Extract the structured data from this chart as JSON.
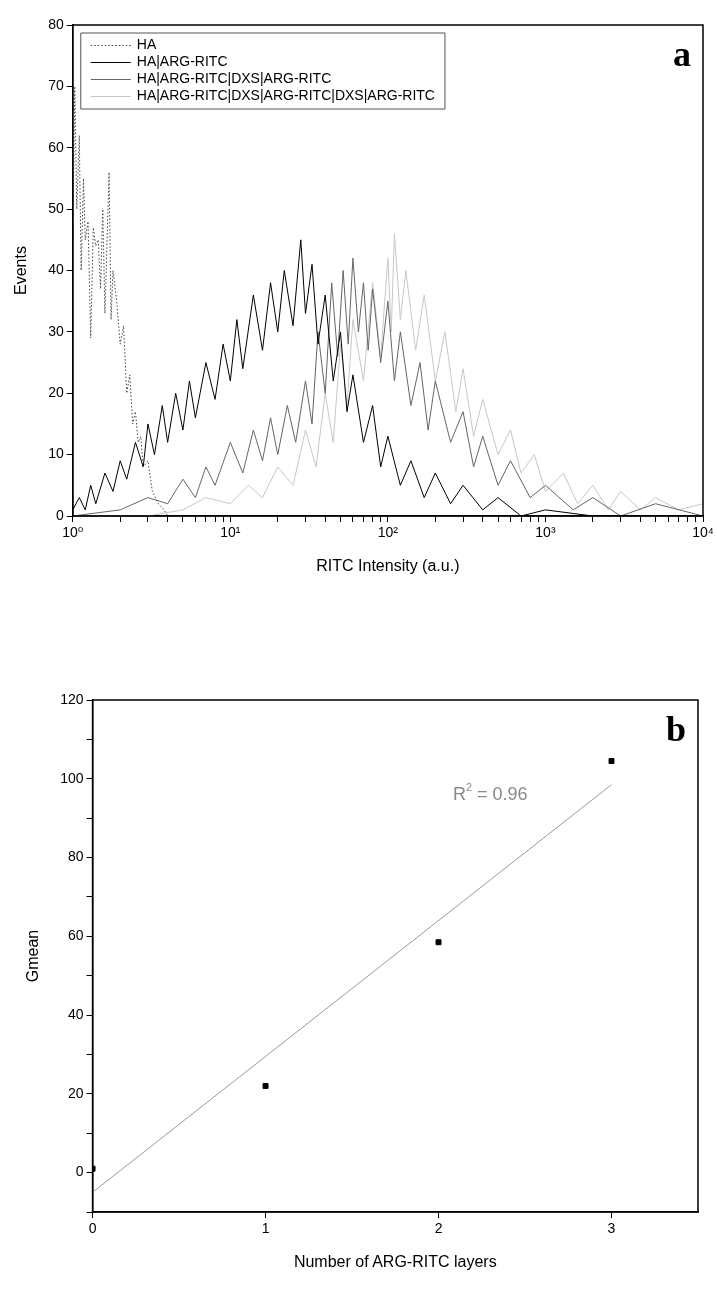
{
  "chart_data": [
    {
      "type": "line",
      "xlabel": "RITC Intensity (a.u.)",
      "ylabel": "Events",
      "log": "x",
      "legend": "top left",
      "marker": "none",
      "xlim": [
        1,
        10000
      ],
      "xticks": [
        {
          "value": 1,
          "label": "10⁰"
        },
        {
          "value": 2,
          "label": null
        },
        {
          "value": 3,
          "label": null
        },
        {
          "value": 4,
          "label": null
        },
        {
          "value": 5,
          "label": null
        },
        {
          "value": 6,
          "label": null
        },
        {
          "value": 7,
          "label": null
        },
        {
          "value": 8,
          "label": null
        },
        {
          "value": 9,
          "label": null
        },
        {
          "value": 10,
          "label": "10¹"
        },
        {
          "value": 20,
          "label": null
        },
        {
          "value": 30,
          "label": null
        },
        {
          "value": 40,
          "label": null
        },
        {
          "value": 50,
          "label": null
        },
        {
          "value": 60,
          "label": null
        },
        {
          "value": 70,
          "label": null
        },
        {
          "value": 80,
          "label": null
        },
        {
          "value": 90,
          "label": null
        },
        {
          "value": 100,
          "label": "10²"
        },
        {
          "value": 200,
          "label": null
        },
        {
          "value": 300,
          "label": null
        },
        {
          "value": 400,
          "label": null
        },
        {
          "value": 500,
          "label": null
        },
        {
          "value": 600,
          "label": null
        },
        {
          "value": 700,
          "label": null
        },
        {
          "value": 800,
          "label": null
        },
        {
          "value": 900,
          "label": null
        },
        {
          "value": 1000,
          "label": "10³"
        },
        {
          "value": 2000,
          "label": null
        },
        {
          "value": 3000,
          "label": null
        },
        {
          "value": 4000,
          "label": null
        },
        {
          "value": 5000,
          "label": null
        },
        {
          "value": 6000,
          "label": null
        },
        {
          "value": 7000,
          "label": null
        },
        {
          "value": 8000,
          "label": null
        },
        {
          "value": 9000,
          "label": null
        },
        {
          "value": 10000,
          "label": "10⁴"
        }
      ],
      "ylim": [
        0,
        80
      ],
      "yticks": [
        0,
        10,
        20,
        30,
        40,
        50,
        60,
        70,
        80
      ],
      "annotations": [
        "a"
      ],
      "series": [
        {
          "name": "HA",
          "color": "#444444",
          "line_style": "dotted",
          "x": [
            1,
            1.03,
            1.06,
            1.1,
            1.13,
            1.17,
            1.2,
            1.25,
            1.3,
            1.35,
            1.4,
            1.45,
            1.5,
            1.55,
            1.6,
            1.7,
            1.75,
            1.8,
            1.9,
            2,
            2.1,
            2.2,
            2.3,
            2.4,
            2.5,
            2.6,
            2.7,
            2.8,
            3,
            3.2,
            3.5,
            3.8,
            4,
            5
          ],
          "values": [
            45,
            70,
            50,
            62,
            40,
            55,
            45,
            48,
            29,
            47,
            44,
            45,
            37,
            50,
            33,
            56,
            32,
            40,
            35,
            28,
            31,
            20,
            23,
            15,
            17,
            12,
            13,
            8,
            9,
            4,
            2,
            1,
            0,
            0
          ]
        },
        {
          "name": "HA|ARG-RITC",
          "color": "#000000",
          "x": [
            1,
            1.1,
            1.2,
            1.3,
            1.4,
            1.6,
            1.8,
            2,
            2.2,
            2.5,
            2.8,
            3,
            3.3,
            3.7,
            4,
            4.5,
            5,
            5.5,
            6,
            7,
            8,
            9,
            10,
            11,
            12,
            14,
            16,
            18,
            20,
            22,
            25,
            28,
            30,
            33,
            36,
            40,
            45,
            50,
            55,
            60,
            70,
            80,
            90,
            100,
            120,
            140,
            170,
            200,
            250,
            300,
            400,
            500,
            700,
            1000,
            2000,
            10000
          ],
          "values": [
            1,
            3,
            1,
            5,
            2,
            7,
            4,
            9,
            6,
            12,
            8,
            15,
            10,
            18,
            12,
            20,
            14,
            22,
            16,
            25,
            19,
            28,
            22,
            32,
            24,
            36,
            27,
            38,
            30,
            40,
            31,
            45,
            33,
            41,
            28,
            36,
            22,
            30,
            17,
            23,
            12,
            18,
            8,
            13,
            5,
            9,
            3,
            7,
            2,
            5,
            1,
            3,
            0,
            1,
            0,
            0
          ]
        },
        {
          "name": "HA|ARG-RITC|DXS|ARG-RITC",
          "color": "#666666",
          "x": [
            1,
            2,
            3,
            4,
            5,
            6,
            7,
            8,
            10,
            12,
            14,
            16,
            18,
            20,
            23,
            26,
            30,
            33,
            36,
            40,
            44,
            48,
            52,
            56,
            60,
            65,
            70,
            75,
            80,
            90,
            100,
            110,
            120,
            140,
            160,
            180,
            200,
            250,
            300,
            350,
            400,
            500,
            600,
            800,
            1000,
            1500,
            2000,
            3000,
            5000,
            10000
          ],
          "values": [
            0,
            1,
            3,
            2,
            6,
            3,
            8,
            5,
            12,
            7,
            14,
            9,
            16,
            10,
            18,
            12,
            22,
            15,
            30,
            20,
            38,
            26,
            40,
            28,
            42,
            30,
            38,
            27,
            37,
            25,
            35,
            22,
            30,
            18,
            25,
            14,
            22,
            12,
            17,
            8,
            13,
            5,
            9,
            3,
            5,
            1,
            3,
            0,
            2,
            0
          ]
        },
        {
          "name": "HA|ARG-RITC|DXS|ARG-RITC|DXS|ARG-RITC",
          "color": "#c8c8c8",
          "x": [
            1,
            3,
            5,
            7,
            10,
            13,
            16,
            20,
            25,
            30,
            35,
            40,
            45,
            50,
            55,
            60,
            70,
            80,
            90,
            100,
            105,
            110,
            120,
            130,
            150,
            170,
            200,
            230,
            270,
            300,
            350,
            400,
            500,
            600,
            700,
            850,
            1000,
            1300,
            1600,
            2000,
            2500,
            3000,
            4000,
            5000,
            7000,
            10000
          ],
          "values": [
            0,
            0,
            1,
            3,
            2,
            5,
            3,
            8,
            5,
            14,
            8,
            20,
            12,
            28,
            18,
            32,
            22,
            38,
            26,
            42,
            30,
            46,
            32,
            40,
            27,
            36,
            22,
            30,
            17,
            24,
            13,
            19,
            10,
            14,
            7,
            10,
            4,
            7,
            2,
            5,
            1,
            4,
            1,
            3,
            1,
            2
          ]
        }
      ]
    },
    {
      "type": "scatter",
      "xlabel": "Number of ARG-RITC layers",
      "ylabel": "Gmean",
      "xlim": [
        0,
        3.5
      ],
      "xticks": [
        0,
        1,
        2,
        3
      ],
      "ylim": [
        -10,
        120
      ],
      "yticks": [
        {
          "value": -10,
          "label": null
        },
        0,
        {
          "value": 10,
          "label": null
        },
        20,
        {
          "value": 30,
          "label": null
        },
        40,
        {
          "value": 50,
          "label": null
        },
        60,
        {
          "value": 70,
          "label": null
        },
        80,
        {
          "value": 90,
          "label": null
        },
        100,
        {
          "value": 110,
          "label": null
        },
        120
      ],
      "annotations": [
        "b",
        "R$^{2}$ = 0.96"
      ],
      "series": [
        {
          "type": "scatter",
          "color": "#000000",
          "marker": "square",
          "x": [
            0,
            1,
            2,
            3
          ],
          "values": [
            1,
            22,
            58.5,
            104.5
          ]
        },
        {
          "type": "line",
          "color": "#999999",
          "x": [
            0,
            3
          ],
          "values": [
            -5,
            98.5
          ]
        }
      ]
    }
  ]
}
